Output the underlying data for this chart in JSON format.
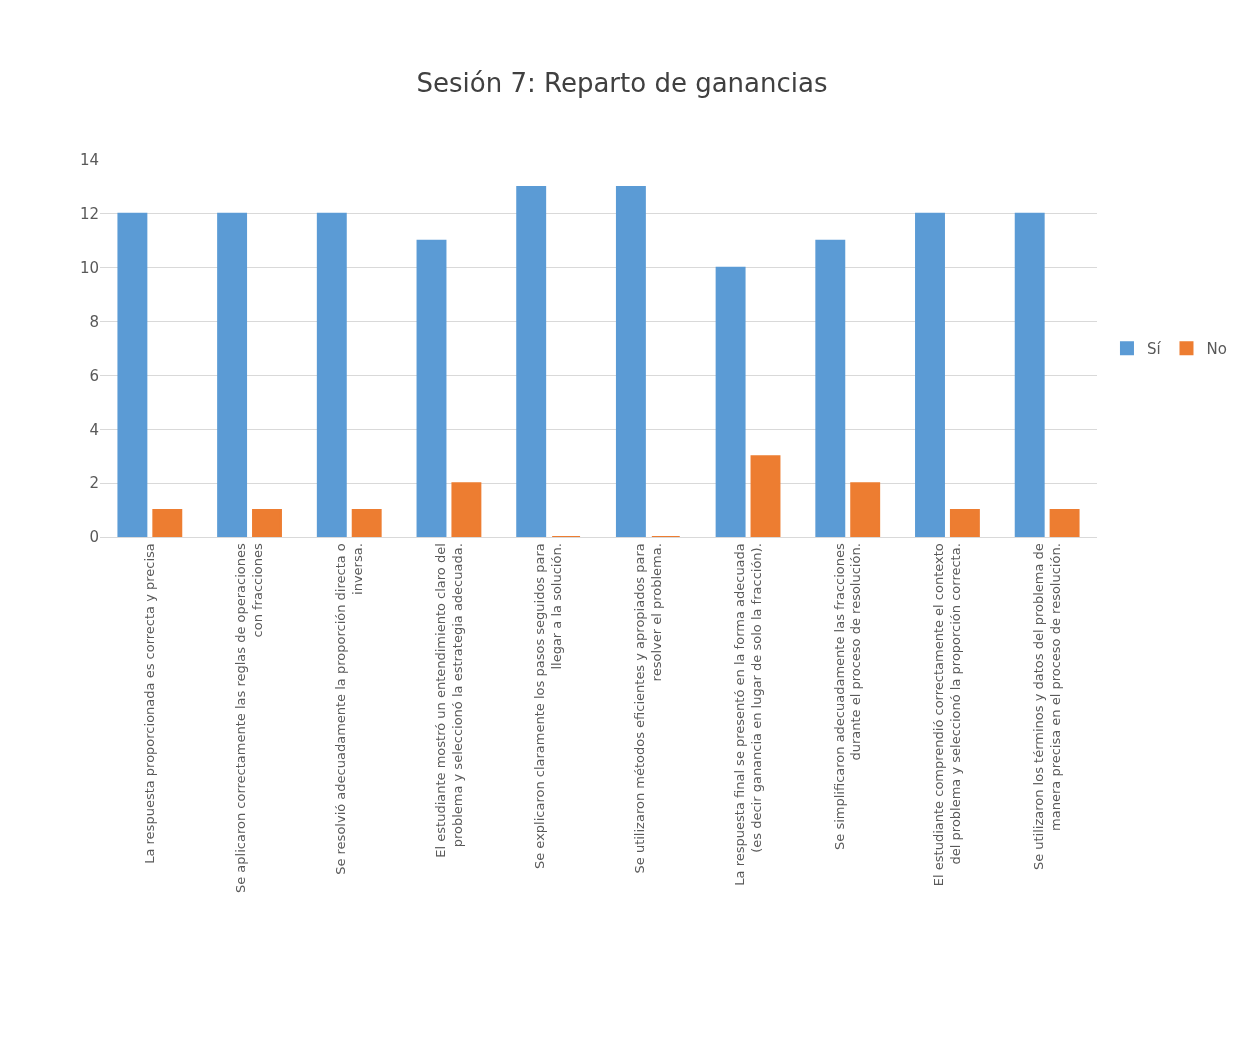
{
  "chart_data": {
    "type": "bar",
    "title": "Sesión 7: Reparto de ganancias",
    "categories": [
      "La respuesta proporcionada es correcta y precisa",
      "Se aplicaron correctamente las reglas de operaciones con fracciones",
      "Se resolvió adecuadamente la proporción directa o inversa.",
      "El estudiante mostró un entendimiento claro del problema y seleccionó la estrategia adecuada.",
      "Se explicaron claramente los pasos seguidos para llegar a la solución.",
      "Se utilizaron métodos eficientes y apropiados para resolver el problema.",
      "La respuesta final se presentó en la forma adecuada (es decir ganancia en lugar de solo la fracción).",
      "Se simplificaron adecuadamente las fracciones durante el proceso de resolución.",
      "El estudiante comprendió correctamente el contexto del problema y seleccionó la proporción correcta.",
      "Se utilizaron los términos y datos del problema de manera precisa en el proceso de resolución."
    ],
    "series": [
      {
        "name": "Sí",
        "color": "#5b9bd5",
        "values": [
          12,
          12,
          12,
          11,
          13,
          13,
          10,
          11,
          12,
          12
        ]
      },
      {
        "name": "No",
        "color": "#ed7d31",
        "values": [
          1,
          1,
          1,
          2,
          0,
          0,
          3,
          2,
          1,
          1
        ]
      }
    ],
    "ylim": [
      0,
      14
    ],
    "yticks": [
      0,
      2,
      4,
      6,
      8,
      10,
      12,
      14
    ],
    "grid": "y",
    "legend": "right"
  }
}
